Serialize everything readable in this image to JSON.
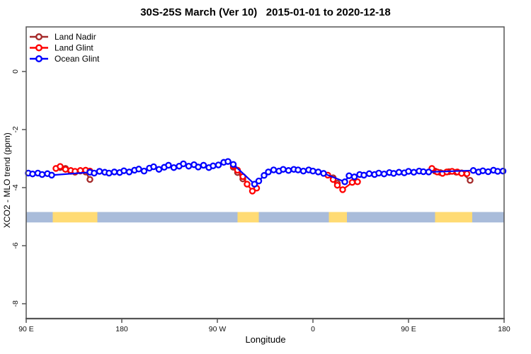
{
  "title": "30S-25S March (Ver 10)   2015-01-01 to 2020-12-18",
  "chart_data": {
    "type": "line",
    "title": "30S-25S March (Ver 10)   2015-01-01 to 2020-12-18",
    "xlabel": "Longitude",
    "ylabel": "XCO2 - MLO trend (ppm)",
    "x_axis_note": "longitude wraps eastward from 90E to 180 (450 degrees total)",
    "xlim": [
      90,
      540
    ],
    "ylim": [
      -8.5,
      1.5
    ],
    "grid": false,
    "legend_position": "top-left",
    "x_ticks": [
      {
        "lon": 90,
        "label": "90 E"
      },
      {
        "lon": 180,
        "label": "180"
      },
      {
        "lon": 270,
        "label": "90 W"
      },
      {
        "lon": 360,
        "label": "0"
      },
      {
        "lon": 450,
        "label": "90 E"
      },
      {
        "lon": 540,
        "label": "180"
      }
    ],
    "y_ticks": [
      {
        "value": 0,
        "label": "0"
      },
      {
        "value": -2,
        "label": "-2"
      },
      {
        "value": -4,
        "label": "-4"
      },
      {
        "value": -6,
        "label": "-6"
      },
      {
        "value": -8,
        "label": "-8"
      }
    ],
    "series": [
      {
        "name": "Land Nadir",
        "color": "#A52A2A",
        "segments": [
          [
            [
              122,
              -3.31
            ],
            [
              127,
              -3.34
            ],
            [
              132,
              -3.44
            ],
            [
              136,
              -3.47
            ],
            [
              141,
              -3.43
            ],
            [
              146,
              -3.46
            ],
            [
              150,
              -3.72
            ]
          ],
          [
            [
              285,
              -3.3
            ],
            [
              289,
              -3.48
            ],
            [
              294,
              -3.7
            ]
          ],
          [
            [
              379,
              -3.66
            ],
            [
              383,
              -3.85
            ]
          ],
          [
            [
              475,
              -3.43
            ],
            [
              480,
              -3.48
            ],
            [
              488,
              -3.45
            ],
            [
              495,
              -3.47
            ],
            [
              500,
              -3.49
            ],
            [
              508,
              -3.75
            ]
          ]
        ]
      },
      {
        "name": "Land Glint",
        "color": "#FF0000",
        "segments": [
          [
            [
              118,
              -3.34
            ],
            [
              122,
              -3.27
            ],
            [
              127,
              -3.37
            ],
            [
              132,
              -3.41
            ],
            [
              136,
              -3.44
            ],
            [
              141,
              -3.41
            ],
            [
              146,
              -3.4
            ],
            [
              150,
              -3.43
            ]
          ],
          [
            [
              285,
              -3.25
            ],
            [
              289,
              -3.4
            ],
            [
              294,
              -3.62
            ],
            [
              298,
              -3.88
            ],
            [
              303,
              -4.12
            ],
            [
              307,
              -4.02
            ]
          ],
          [
            [
              374,
              -3.57
            ],
            [
              379,
              -3.72
            ],
            [
              383,
              -3.92
            ],
            [
              388,
              -4.07
            ],
            [
              397,
              -3.82
            ],
            [
              402,
              -3.8
            ]
          ],
          [
            [
              472,
              -3.34
            ],
            [
              477,
              -3.46
            ],
            [
              482,
              -3.51
            ],
            [
              486,
              -3.46
            ],
            [
              491,
              -3.44
            ],
            [
              496,
              -3.46
            ],
            [
              500,
              -3.51
            ],
            [
              505,
              -3.52
            ]
          ]
        ]
      },
      {
        "name": "Ocean Glint",
        "color": "#0000FF",
        "segments": [
          [
            [
              92,
              -3.5
            ],
            [
              96,
              -3.53
            ],
            [
              101,
              -3.5
            ],
            [
              105,
              -3.55
            ],
            [
              110,
              -3.52
            ],
            [
              114,
              -3.57
            ],
            [
              150,
              -3.47
            ],
            [
              154,
              -3.5
            ],
            [
              159,
              -3.44
            ],
            [
              164,
              -3.47
            ],
            [
              168,
              -3.5
            ],
            [
              173,
              -3.46
            ],
            [
              178,
              -3.48
            ],
            [
              182,
              -3.42
            ],
            [
              187,
              -3.46
            ],
            [
              192,
              -3.4
            ],
            [
              196,
              -3.36
            ],
            [
              201,
              -3.43
            ],
            [
              206,
              -3.33
            ],
            [
              210,
              -3.28
            ],
            [
              215,
              -3.37
            ],
            [
              220,
              -3.3
            ],
            [
              224,
              -3.23
            ],
            [
              229,
              -3.31
            ],
            [
              234,
              -3.26
            ],
            [
              238,
              -3.18
            ],
            [
              243,
              -3.26
            ],
            [
              248,
              -3.21
            ],
            [
              252,
              -3.29
            ],
            [
              257,
              -3.23
            ],
            [
              262,
              -3.31
            ],
            [
              266,
              -3.25
            ],
            [
              271,
              -3.22
            ],
            [
              276,
              -3.13
            ],
            [
              280,
              -3.1
            ],
            [
              285,
              -3.2
            ],
            [
              305,
              -3.88
            ],
            [
              309,
              -3.77
            ],
            [
              314,
              -3.58
            ],
            [
              318,
              -3.46
            ],
            [
              323,
              -3.39
            ],
            [
              328,
              -3.43
            ],
            [
              332,
              -3.37
            ],
            [
              337,
              -3.41
            ],
            [
              342,
              -3.37
            ],
            [
              346,
              -3.39
            ],
            [
              351,
              -3.43
            ],
            [
              356,
              -3.39
            ],
            [
              360,
              -3.43
            ],
            [
              365,
              -3.46
            ],
            [
              370,
              -3.51
            ],
            [
              390,
              -3.8
            ],
            [
              394,
              -3.59
            ],
            [
              399,
              -3.63
            ],
            [
              404,
              -3.55
            ],
            [
              408,
              -3.57
            ],
            [
              413,
              -3.52
            ],
            [
              418,
              -3.55
            ],
            [
              422,
              -3.5
            ],
            [
              427,
              -3.53
            ],
            [
              432,
              -3.48
            ],
            [
              436,
              -3.51
            ],
            [
              441,
              -3.47
            ],
            [
              446,
              -3.49
            ],
            [
              450,
              -3.44
            ],
            [
              455,
              -3.47
            ],
            [
              460,
              -3.43
            ],
            [
              464,
              -3.45
            ],
            [
              469,
              -3.46
            ],
            [
              511,
              -3.41
            ],
            [
              516,
              -3.46
            ],
            [
              520,
              -3.42
            ],
            [
              525,
              -3.45
            ],
            [
              530,
              -3.4
            ],
            [
              534,
              -3.44
            ],
            [
              539,
              -3.43
            ]
          ]
        ]
      }
    ],
    "surface_band": {
      "description": "land/ocean strip along longitude",
      "value_top": -4.84,
      "value_bottom": -5.2,
      "ocean_color": "#A9BCDA",
      "land_color": "#FFDB74",
      "segments": [
        {
          "from": 90,
          "to": 115,
          "type": "ocean"
        },
        {
          "from": 115,
          "to": 157,
          "type": "land"
        },
        {
          "from": 157,
          "to": 289,
          "type": "ocean"
        },
        {
          "from": 289,
          "to": 309,
          "type": "land"
        },
        {
          "from": 309,
          "to": 375,
          "type": "ocean"
        },
        {
          "from": 375,
          "to": 392,
          "type": "land"
        },
        {
          "from": 392,
          "to": 475,
          "type": "ocean"
        },
        {
          "from": 475,
          "to": 510,
          "type": "land"
        },
        {
          "from": 510,
          "to": 540,
          "type": "ocean"
        }
      ]
    },
    "legend": [
      {
        "label": "Land Nadir",
        "color": "#A52A2A"
      },
      {
        "label": "Land Glint",
        "color": "#FF0000"
      },
      {
        "label": "Ocean Glint",
        "color": "#0000FF"
      }
    ]
  },
  "style": {
    "axis_color": "#555555",
    "tick_text_color": "#111111"
  }
}
